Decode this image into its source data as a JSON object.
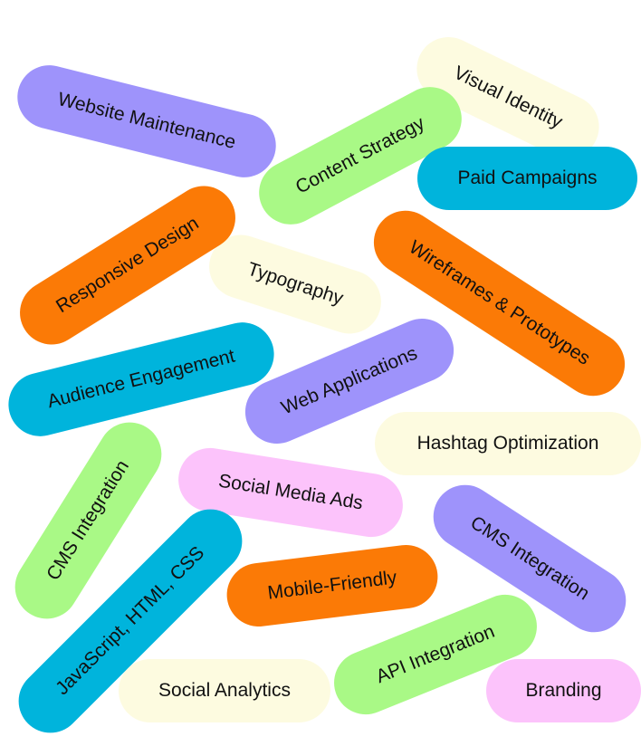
{
  "tags": [
    {
      "label": "Website Maintenance",
      "color": "purple"
    },
    {
      "label": "Visual Identity",
      "color": "cream"
    },
    {
      "label": "Content Strategy",
      "color": "green"
    },
    {
      "label": "Paid Campaigns",
      "color": "cyan"
    },
    {
      "label": "Responsive Design",
      "color": "orange"
    },
    {
      "label": "Typography",
      "color": "cream"
    },
    {
      "label": "Wireframes & Prototypes",
      "color": "orange"
    },
    {
      "label": "Audience Engagement",
      "color": "cyan"
    },
    {
      "label": "Web Applications",
      "color": "purple"
    },
    {
      "label": "Hashtag Optimization",
      "color": "cream"
    },
    {
      "label": "CMS Integration",
      "color": "green"
    },
    {
      "label": "Social Media Ads",
      "color": "pink"
    },
    {
      "label": "CMS Integration",
      "color": "purple"
    },
    {
      "label": "JavaScript, HTML, CSS",
      "color": "cyan"
    },
    {
      "label": "Mobile-Friendly",
      "color": "orange"
    },
    {
      "label": "API Integration",
      "color": "green"
    },
    {
      "label": "Social Analytics",
      "color": "cream"
    },
    {
      "label": "Branding",
      "color": "pink"
    }
  ],
  "palette": {
    "purple": "#9e93fb",
    "green": "#a9f986",
    "cream": "#fdfbe0",
    "cyan": "#00b4dc",
    "orange": "#fb7a06",
    "pink": "#fcc3fb"
  }
}
